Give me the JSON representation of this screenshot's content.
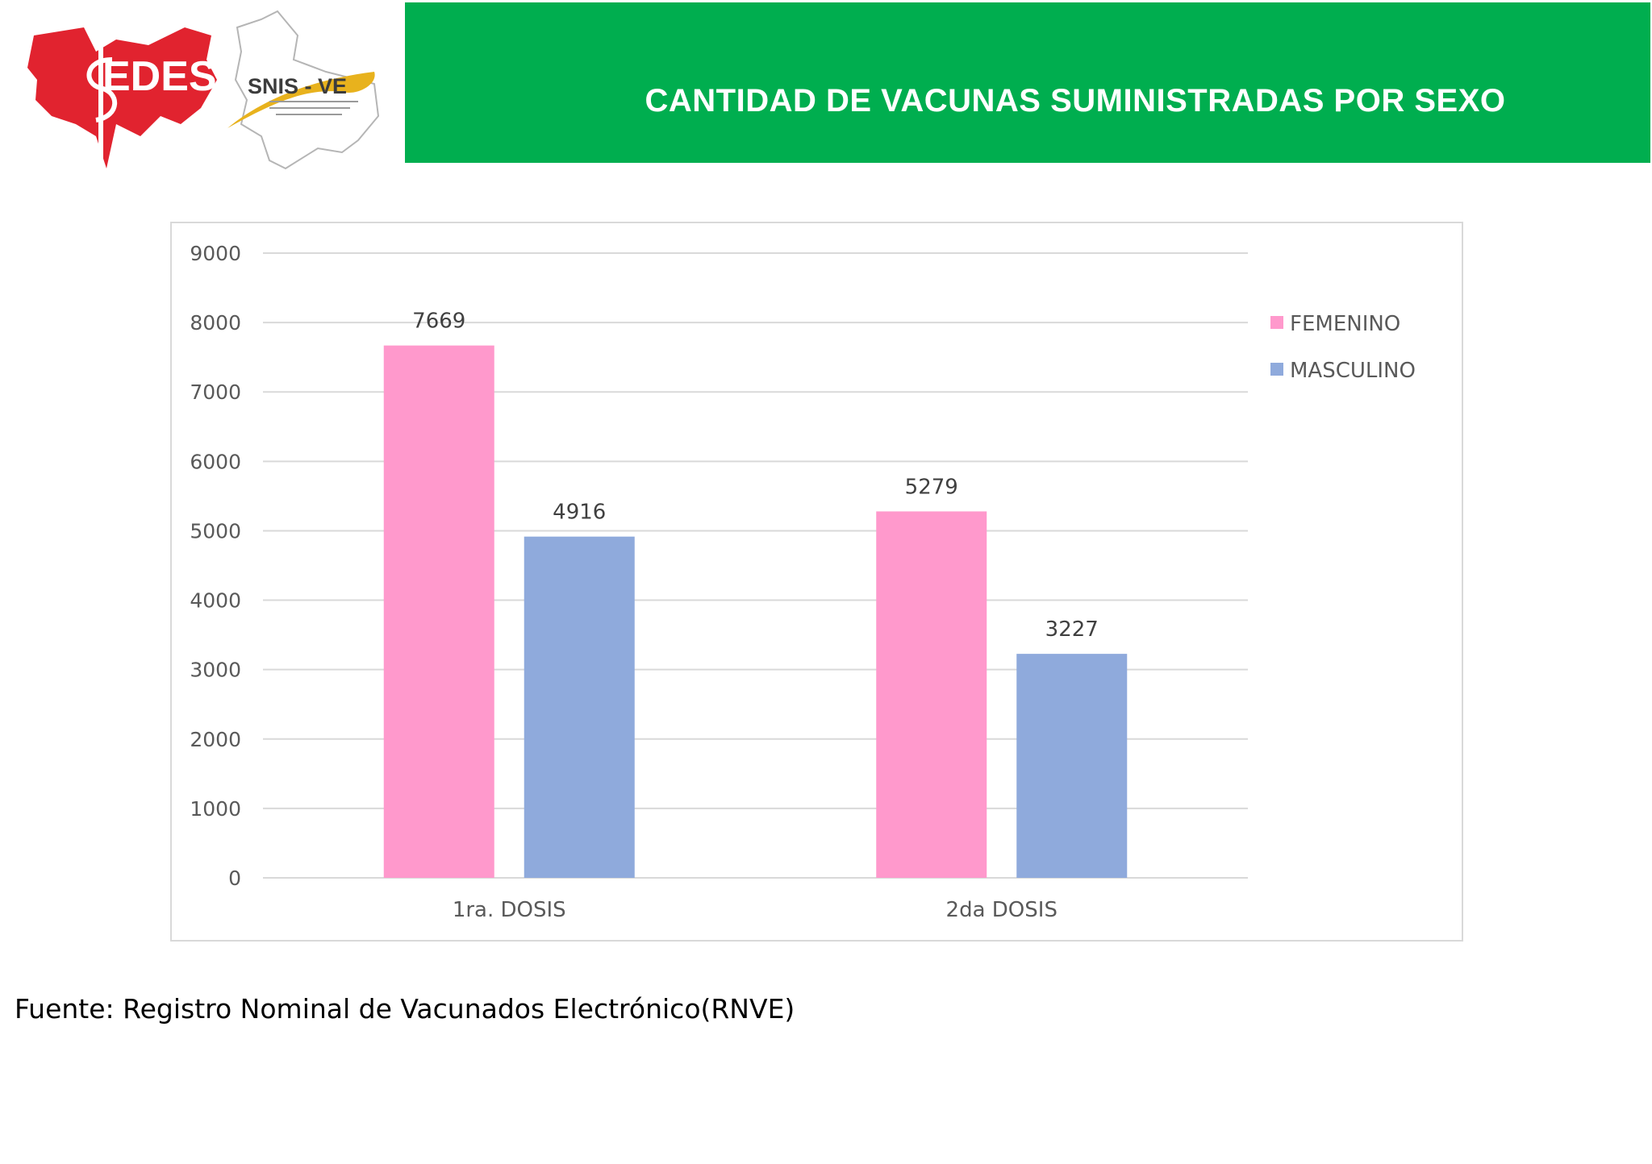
{
  "header": {
    "title": "CANTIDAD DE VACUNAS SUMINISTRADAS POR SEXO",
    "banner_color": "#00ae4f",
    "logos": [
      {
        "name": "sedes-logo",
        "text": "SEDES"
      },
      {
        "name": "snis-ve-logo",
        "text": "SNIS - VE"
      }
    ]
  },
  "chart_data": {
    "type": "bar",
    "title": "",
    "xlabel": "",
    "ylabel": "",
    "categories": [
      "1ra. DOSIS",
      "2da DOSIS"
    ],
    "series": [
      {
        "name": "FEMENINO",
        "values": [
          7669,
          5279
        ],
        "color": "#ff99cc"
      },
      {
        "name": "MASCULINO",
        "values": [
          4916,
          3227
        ],
        "color": "#8faadc"
      }
    ],
    "ylim": [
      0,
      9000
    ],
    "yticks": [
      0,
      1000,
      2000,
      3000,
      4000,
      5000,
      6000,
      7000,
      8000,
      9000
    ],
    "grid": true,
    "legend": "right",
    "data_labels": true
  },
  "footer": {
    "source": "Fuente: Registro Nominal de Vacunados Electrónico(RNVE)"
  }
}
